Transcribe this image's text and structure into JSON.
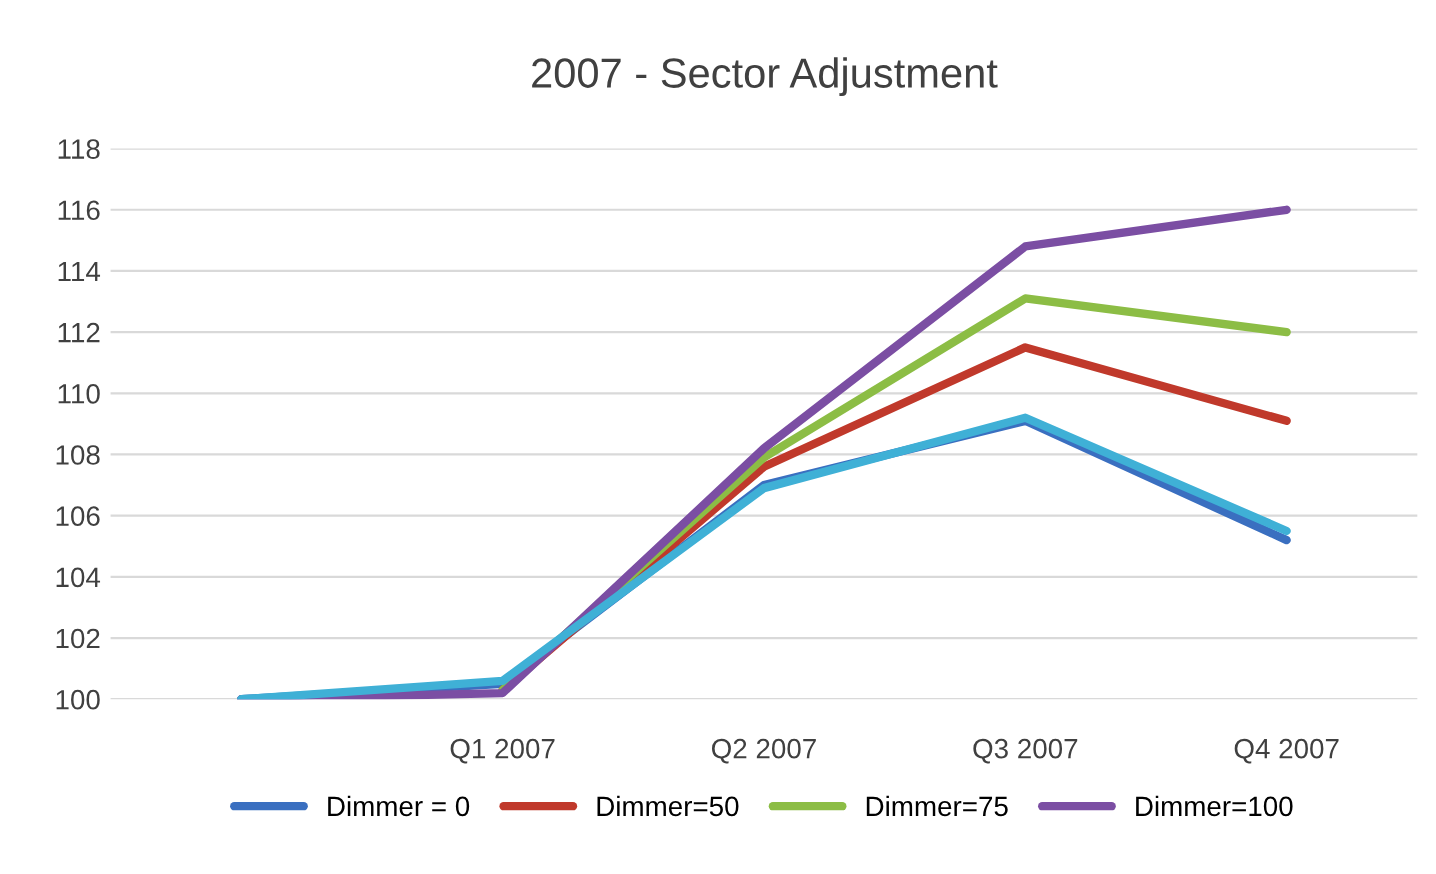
{
  "chart_data": {
    "type": "line",
    "title": "2007 - Sector Adjustment",
    "categories": [
      null,
      "Q1 2007",
      "Q2 2007",
      "Q3 2007",
      "Q4 2007"
    ],
    "series": [
      {
        "name": "Dimmer = 0",
        "color": "#3a6fc0",
        "values": [
          100,
          100.5,
          107,
          109.1,
          105.2
        ]
      },
      {
        "name": "Dimmer=50",
        "color": "#c0392b",
        "values": [
          null,
          100.3,
          107.6,
          111.5,
          109.1
        ]
      },
      {
        "name": "Dimmer=75",
        "color": "#8cbd45",
        "values": [
          null,
          100.3,
          107.9,
          113.1,
          112
        ]
      },
      {
        "name": "Dimmer=100",
        "color": "#7b4ea3",
        "values": [
          100,
          100.2,
          108.2,
          114.8,
          116
        ]
      },
      {
        "color": "#3fb0d6",
        "values": [
          100,
          100.6,
          106.9,
          109.2,
          105.5
        ]
      }
    ],
    "ylim": [
      100,
      118
    ],
    "yticks": [
      100,
      102,
      104,
      106,
      108,
      110,
      112,
      114,
      116,
      118
    ],
    "grid": "y",
    "legend": "bottom",
    "marker": "none",
    "line_style": "solid"
  }
}
